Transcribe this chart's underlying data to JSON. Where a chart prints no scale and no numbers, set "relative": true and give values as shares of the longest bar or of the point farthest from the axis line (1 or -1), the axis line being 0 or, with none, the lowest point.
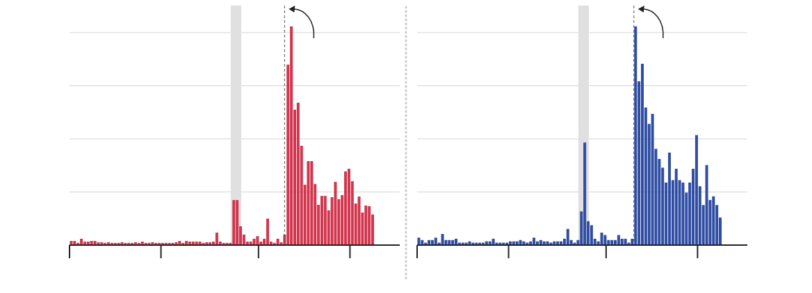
{
  "chart_data": [
    {
      "type": "bar",
      "relative": true,
      "grid": true,
      "categories": [
        null,
        null,
        null,
        null,
        null,
        null,
        null,
        null,
        null,
        null,
        null,
        null,
        null,
        null,
        null,
        null,
        null,
        null,
        null,
        null,
        null,
        null,
        null,
        null,
        null,
        null,
        null,
        null,
        null,
        null,
        null,
        null,
        null,
        null,
        null,
        null,
        null,
        null,
        null,
        null,
        null,
        null,
        null,
        null,
        null,
        null,
        null,
        null,
        null,
        null,
        null,
        null,
        null,
        null,
        null,
        null,
        null,
        null,
        null,
        null,
        null,
        null,
        null,
        null,
        null,
        null,
        null,
        null,
        null,
        null,
        null,
        null,
        null,
        null,
        null,
        null,
        null,
        null,
        null,
        null,
        null,
        null,
        null,
        null,
        null,
        null,
        null,
        null,
        null,
        null
      ],
      "color": "#d2354d",
      "values": [
        0.019,
        0.019,
        0.01,
        0.029,
        0.016,
        0.016,
        0.019,
        0.019,
        0.013,
        0.013,
        0.01,
        0.013,
        0.01,
        0.01,
        0.01,
        0.013,
        0.01,
        0.01,
        0.01,
        0.013,
        0.01,
        0.016,
        0.01,
        0.01,
        0.013,
        0.01,
        0.01,
        0.01,
        0.01,
        0.01,
        0.01,
        0.013,
        0.019,
        0.01,
        0.019,
        0.016,
        0.016,
        0.016,
        0.016,
        0.01,
        0.013,
        0.013,
        0.016,
        0.057,
        0.016,
        0.01,
        0.01,
        0.01,
        0.206,
        0.206,
        0.086,
        0.048,
        0.016,
        0.016,
        0.029,
        0.041,
        0.016,
        0.029,
        0.121,
        0.016,
        0.01,
        0.029,
        0.013,
        0.048,
        0.825,
        1,
        0.619,
        0.651,
        0.454,
        0.276,
        0.384,
        0.384,
        0.279,
        0.184,
        0.225,
        0.225,
        0.159,
        0.219,
        0.289,
        0.21,
        0.229,
        0.337,
        0.349,
        0.292,
        0.19,
        0.222,
        0.149,
        0.181,
        0.178,
        0.14
      ]
    },
    {
      "type": "bar",
      "relative": true,
      "grid": true,
      "categories": [
        null,
        null,
        null,
        null,
        null,
        null,
        null,
        null,
        null,
        null,
        null,
        null,
        null,
        null,
        null,
        null,
        null,
        null,
        null,
        null,
        null,
        null,
        null,
        null,
        null,
        null,
        null,
        null,
        null,
        null,
        null,
        null,
        null,
        null,
        null,
        null,
        null,
        null,
        null,
        null,
        null,
        null,
        null,
        null,
        null,
        null,
        null,
        null,
        null,
        null,
        null,
        null,
        null,
        null,
        null,
        null,
        null,
        null,
        null,
        null,
        null,
        null,
        null,
        null,
        null,
        null,
        null,
        null,
        null,
        null,
        null,
        null,
        null,
        null,
        null,
        null,
        null,
        null,
        null,
        null,
        null,
        null,
        null,
        null,
        null,
        null,
        null,
        null,
        null,
        null
      ],
      "color": "#2f4da3",
      "values": [
        0.034,
        0.023,
        0.011,
        0.023,
        0.023,
        0.034,
        0.011,
        0.051,
        0.023,
        0.023,
        0.023,
        0.029,
        0.011,
        0.011,
        0.011,
        0.017,
        0.011,
        0.011,
        0.011,
        0.011,
        0.017,
        0.017,
        0.029,
        0.011,
        0.011,
        0.011,
        0.011,
        0.017,
        0.017,
        0.017,
        0.023,
        0.017,
        0.011,
        0.017,
        0.034,
        0.017,
        0.023,
        0.017,
        0.017,
        0.011,
        0.017,
        0.017,
        0.017,
        0.029,
        0.074,
        0.023,
        0.011,
        0.023,
        0.154,
        0.469,
        0.109,
        0.091,
        0.029,
        0.017,
        0.057,
        0.046,
        0.023,
        0.023,
        0.023,
        0.046,
        0.029,
        0.029,
        0.011,
        0.029,
        1,
        0.749,
        0.829,
        0.629,
        0.554,
        0.6,
        0.44,
        0.394,
        0.354,
        0.286,
        0.423,
        0.297,
        0.349,
        0.297,
        0.286,
        0.24,
        0.286,
        0.349,
        0.503,
        0.269,
        0.183,
        0.366,
        0.206,
        0.223,
        0.183,
        0.126
      ]
    }
  ]
}
